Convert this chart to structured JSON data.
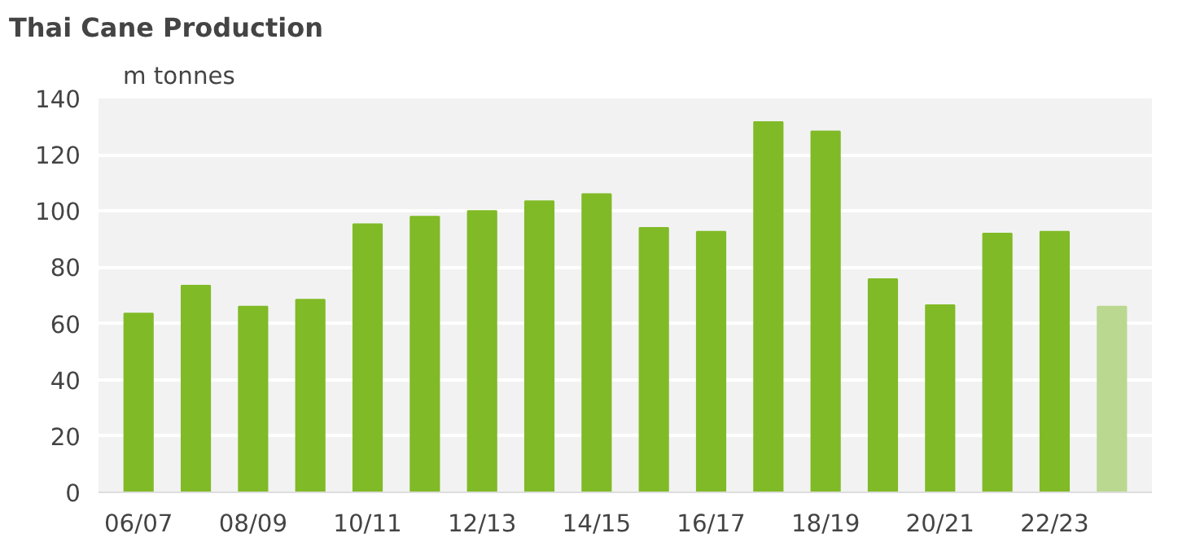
{
  "chart_data": {
    "type": "bar",
    "title": "Thai Cane Production",
    "ylabel": "m tonnes",
    "categories": [
      "06/07",
      null,
      "08/09",
      null,
      "10/11",
      null,
      "12/13",
      null,
      "14/15",
      null,
      "16/17",
      null,
      "18/19",
      null,
      "20/21",
      null,
      "22/23",
      null
    ],
    "values": [
      63.6,
      73.5,
      66,
      68.5,
      95.3,
      98,
      100,
      103.5,
      106,
      94,
      92.6,
      131.6,
      128.3,
      75.8,
      66.5,
      92,
      92.6,
      66
    ],
    "colors": [
      "#80ba27",
      "#80ba27",
      "#80ba27",
      "#80ba27",
      "#80ba27",
      "#80ba27",
      "#80ba27",
      "#80ba27",
      "#80ba27",
      "#80ba27",
      "#80ba27",
      "#80ba27",
      "#80ba27",
      "#80ba27",
      "#80ba27",
      "#80ba27",
      "#80ba27",
      "#bad88f"
    ],
    "ylim": [
      0,
      140
    ],
    "yticks": [
      0,
      20,
      40,
      60,
      80,
      100,
      120,
      140
    ],
    "grid": "y"
  }
}
